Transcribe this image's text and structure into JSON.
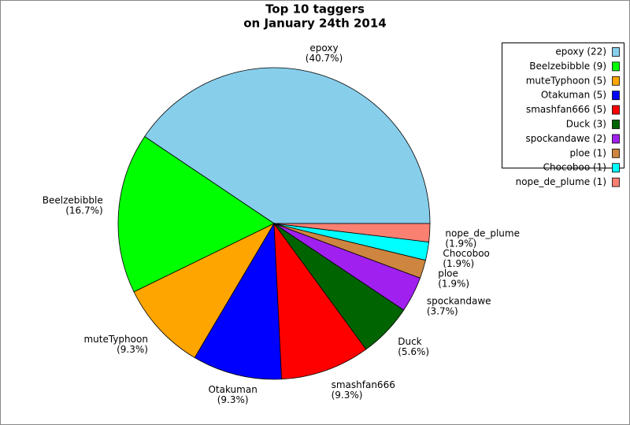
{
  "chart_data": {
    "type": "pie",
    "title": "Top 10 taggers",
    "subtitle": "on January 24th 2014",
    "categories": [
      "epoxy",
      "Beelzebibble",
      "muteTyphoon",
      "Otakuman",
      "smashfan666",
      "Duck",
      "spockandawe",
      "ploe",
      "Chocoboo",
      "nope_de_plume"
    ],
    "values": [
      40.7,
      16.7,
      9.3,
      9.3,
      9.3,
      5.6,
      3.7,
      1.9,
      1.9,
      1.9
    ],
    "value_labels": [
      "(40.7%)",
      "(16.7%)",
      "(9.3%)",
      "(9.3%)",
      "(9.3%)",
      "(5.6%)",
      "(3.7%)",
      "(1.9%)",
      "(1.9%)",
      "(1.9%)"
    ],
    "legend_labels": [
      "epoxy (22)",
      "Beelzebibble (9)",
      "muteTyphoon (5)",
      "Otakuman (5)",
      "smashfan666 (5)",
      "Duck (3)",
      "spockandawe (2)",
      "ploe (1)",
      "Chocoboo (1)",
      "nope_de_plume (1)"
    ],
    "colors": [
      "#87ceeb",
      "#00ff00",
      "#ffa500",
      "#0000ff",
      "#ff0000",
      "#006400",
      "#a020f0",
      "#cd853f",
      "#00ffff",
      "#fa8072"
    ],
    "legend_position": "upper right"
  }
}
